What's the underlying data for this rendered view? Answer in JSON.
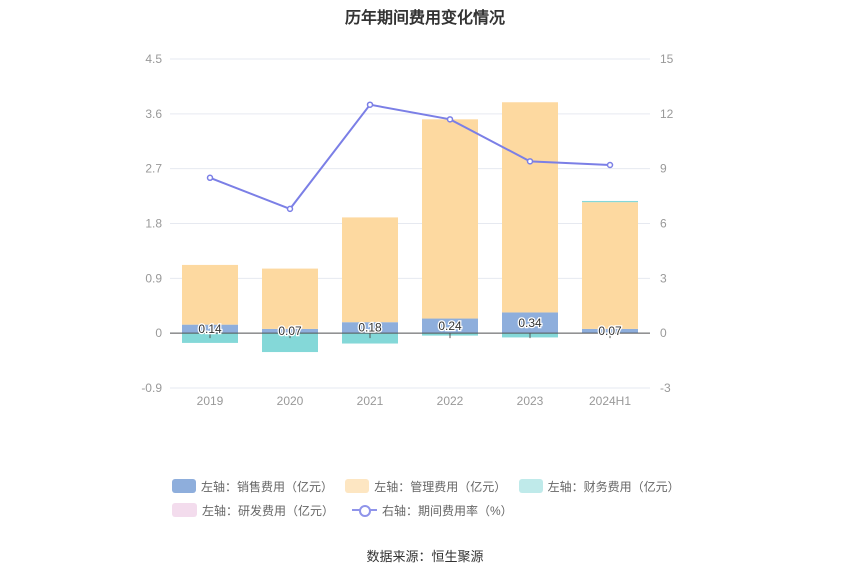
{
  "title": "历年期间费用变化情况",
  "source": "数据来源：恒生聚源",
  "legend": {
    "sales": "左轴：销售费用（亿元）",
    "admin": "左轴：管理费用（亿元）",
    "finance": "左轴：财务费用（亿元）",
    "rd": "左轴：研发费用（亿元）",
    "rate": "右轴：期间费用率（%）"
  },
  "colors": {
    "sales": "#8eaedc",
    "admin": "#fdd9a0",
    "finance": "#84d8d8",
    "rd": "#f3dced",
    "rate": "#7b7fe6",
    "grid": "#e6e9f0",
    "axis_text": "#999999"
  },
  "chart_data": {
    "type": "bar",
    "categories": [
      "2019",
      "2020",
      "2021",
      "2022",
      "2023",
      "2024H1"
    ],
    "series": [
      {
        "name": "左轴：销售费用（亿元）",
        "axis": "left",
        "values": [
          0.14,
          0.07,
          0.18,
          0.24,
          0.34,
          0.07
        ],
        "labels": [
          "0.14",
          "0.07",
          "0.18",
          "0.24",
          "0.34",
          "0.07"
        ]
      },
      {
        "name": "左轴：管理费用（亿元）",
        "axis": "left",
        "values": [
          0.98,
          0.99,
          1.72,
          3.27,
          3.45,
          2.08
        ]
      },
      {
        "name": "左轴：财务费用（亿元）",
        "axis": "left",
        "values": [
          -0.16,
          -0.31,
          -0.17,
          -0.04,
          -0.07,
          0.02
        ]
      },
      {
        "name": "左轴：研发费用（亿元）",
        "axis": "left",
        "values": [
          0,
          0,
          0,
          0,
          0,
          0
        ]
      },
      {
        "name": "右轴：期间费用率（%）",
        "axis": "right",
        "type": "line",
        "values": [
          8.5,
          6.8,
          12.5,
          11.7,
          9.4,
          9.2
        ]
      }
    ],
    "left_axis": {
      "min": -0.9,
      "max": 4.5,
      "ticks": [
        "-0.9",
        "0",
        "0.9",
        "1.8",
        "2.7",
        "3.6",
        "4.5"
      ]
    },
    "right_axis": {
      "min": -3,
      "max": 15,
      "ticks": [
        "-3",
        "0",
        "3",
        "6",
        "9",
        "12",
        "15"
      ]
    },
    "grid": true,
    "legend_position": "bottom"
  }
}
